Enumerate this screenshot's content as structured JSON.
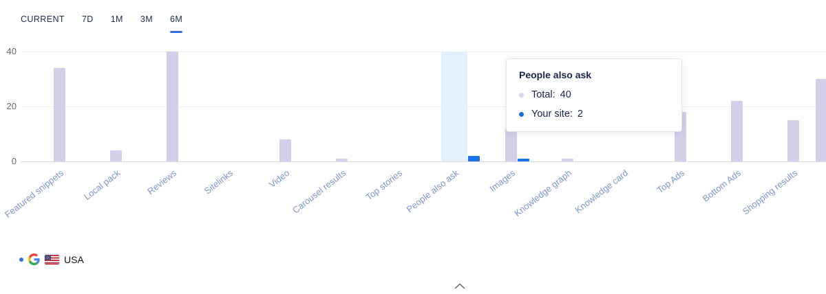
{
  "tabs": [
    {
      "label": "CURRENT",
      "active": false
    },
    {
      "label": "7D",
      "active": false
    },
    {
      "label": "1M",
      "active": false
    },
    {
      "label": "3M",
      "active": false
    },
    {
      "label": "6M",
      "active": true
    }
  ],
  "chart_data": {
    "type": "bar",
    "title": "",
    "categories": [
      "Featured snippets",
      "Local pack",
      "Reviews",
      "Sitelinks",
      "Video",
      "Carousel results",
      "Top stories",
      "People also ask",
      "Images",
      "Knowledge graph",
      "Knowledge card",
      "Top Ads",
      "Bottom Ads",
      "Shopping results"
    ],
    "series": [
      {
        "name": "Total",
        "color": "#d4cfe8",
        "values": [
          34,
          4,
          40,
          0,
          8,
          1,
          0,
          40,
          12,
          1,
          0,
          18,
          22,
          15
        ]
      },
      {
        "name": "Your site",
        "color": "#1a73e8",
        "values": [
          0,
          0,
          0,
          0,
          0,
          0,
          0,
          2,
          1,
          0,
          0,
          0,
          0,
          0
        ]
      }
    ],
    "ylim": [
      0,
      40
    ],
    "yticks": [
      0,
      20,
      40
    ],
    "grid": true,
    "highlighted_category": "People also ask",
    "highlight_color": "#e2f1fd",
    "edge_clipped_bar_value": 30,
    "category_label_color": "#7b97d1",
    "legend_position": "bottom-left"
  },
  "tooltip": {
    "title": "People also ask",
    "rows": [
      {
        "label": "Total:",
        "value": "40",
        "dot_color": "#d9d4ed"
      },
      {
        "label": "Your site:",
        "value": "2",
        "dot_color": "#1a6fdc"
      }
    ]
  },
  "legend": {
    "dot_color": "#2e6fd8",
    "search_engine_icon": "google",
    "flag_icon": "usa",
    "label": "USA"
  },
  "icons": {
    "chevron_up": "collapse-panel"
  },
  "colors": {
    "accent_blue": "#2e6fe0",
    "bar_total": "#d4cfe8",
    "bar_your_site": "#1a73e8",
    "text_navy": "#1b2b4d"
  }
}
